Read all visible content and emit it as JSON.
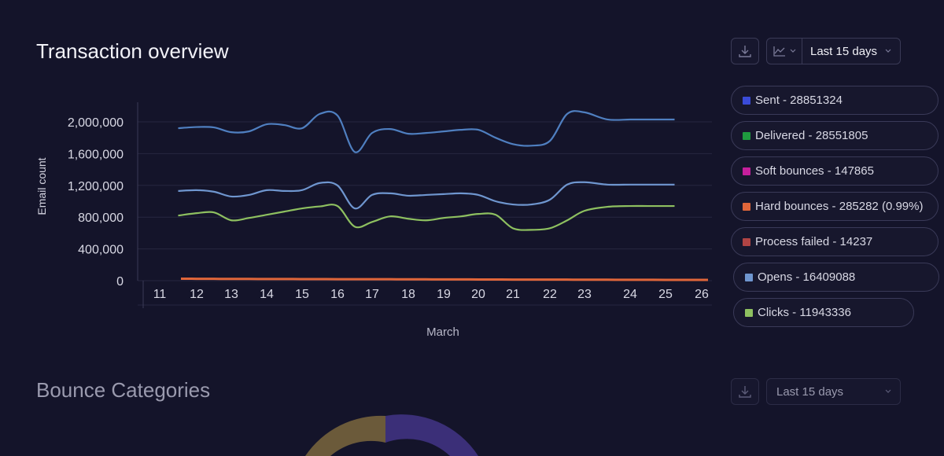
{
  "section1": {
    "title": "Transaction overview",
    "range_label": "Last 15 days",
    "download_icon": "download-icon",
    "chart_type_icon": "line-chart-icon"
  },
  "legend": [
    {
      "label": "Sent - 28851324",
      "color": "#3a4bd8"
    },
    {
      "label": "Delivered - 28551805",
      "color": "#1f9a3f"
    },
    {
      "label": "Soft bounces - 147865",
      "color": "#c51f9c"
    },
    {
      "label": "Hard bounces - 285282 (0.99%)",
      "color": "#e0663a"
    },
    {
      "label": "Process failed - 14237",
      "color": "#b04444"
    },
    {
      "label": "Opens - 16409088",
      "color": "#6f96cf"
    },
    {
      "label": "Clicks - 11943336",
      "color": "#8ec060"
    }
  ],
  "section2": {
    "title": "Bounce Categories",
    "range_label": "Last 15 days",
    "download_icon": "download-icon"
  },
  "chart_data": {
    "type": "line",
    "xlabel": "March",
    "ylabel": "Email count",
    "ylim": [
      0,
      2200000
    ],
    "yticks": [
      0,
      400000,
      800000,
      1200000,
      1600000,
      2000000
    ],
    "ytick_labels": [
      "0",
      "400,000",
      "800,000",
      "1,200,000",
      "1,600,000",
      "2,000,000"
    ],
    "categories": [
      "11",
      "12",
      "13",
      "14",
      "15",
      "16",
      "17",
      "18",
      "19",
      "20",
      "21",
      "22",
      "23",
      "24",
      "25",
      "26"
    ],
    "x": [
      11.5,
      12,
      12.5,
      13,
      13.5,
      14,
      14.5,
      15,
      15.5,
      16,
      16.5,
      17,
      17.5,
      18,
      18.5,
      19,
      19.5,
      20,
      20.5,
      21,
      21.5,
      22,
      22.5,
      23,
      23.5,
      24,
      24.5,
      25,
      25.25
    ],
    "series": [
      {
        "name": "Sent",
        "color": "#4f7fc0",
        "values": [
          1920000,
          1935000,
          1930000,
          1870000,
          1880000,
          1970000,
          1960000,
          1920000,
          2100000,
          2080000,
          1620000,
          1860000,
          1910000,
          1850000,
          1860000,
          1880000,
          1900000,
          1900000,
          1800000,
          1720000,
          1700000,
          1760000,
          2100000,
          2120000,
          2030000,
          2030000,
          2030000,
          2030000,
          2030000
        ]
      },
      {
        "name": "Opens",
        "color": "#6f96cf",
        "values": [
          1130000,
          1140000,
          1120000,
          1060000,
          1080000,
          1140000,
          1130000,
          1140000,
          1230000,
          1200000,
          910000,
          1080000,
          1100000,
          1070000,
          1080000,
          1090000,
          1100000,
          1080000,
          1000000,
          960000,
          960000,
          1020000,
          1210000,
          1240000,
          1210000,
          1210000,
          1210000,
          1210000,
          1210000
        ]
      },
      {
        "name": "Clicks",
        "color": "#8ec060",
        "values": [
          820000,
          850000,
          860000,
          760000,
          790000,
          830000,
          870000,
          910000,
          935000,
          940000,
          680000,
          740000,
          810000,
          780000,
          760000,
          790000,
          810000,
          840000,
          830000,
          660000,
          640000,
          660000,
          760000,
          880000,
          930000,
          940000,
          940000,
          940000,
          940000
        ]
      },
      {
        "name": "Hard bounces",
        "color": "#e0663a",
        "values": [
          25000,
          24000,
          23000,
          22000,
          22000,
          21000,
          21000,
          20000,
          20000,
          19000,
          19000,
          18000,
          18000,
          17000,
          17000,
          16000,
          16000,
          15000,
          15000,
          14000,
          14000,
          13000,
          13000,
          12000,
          12000,
          11000,
          11000,
          10000,
          10000
        ]
      }
    ]
  }
}
